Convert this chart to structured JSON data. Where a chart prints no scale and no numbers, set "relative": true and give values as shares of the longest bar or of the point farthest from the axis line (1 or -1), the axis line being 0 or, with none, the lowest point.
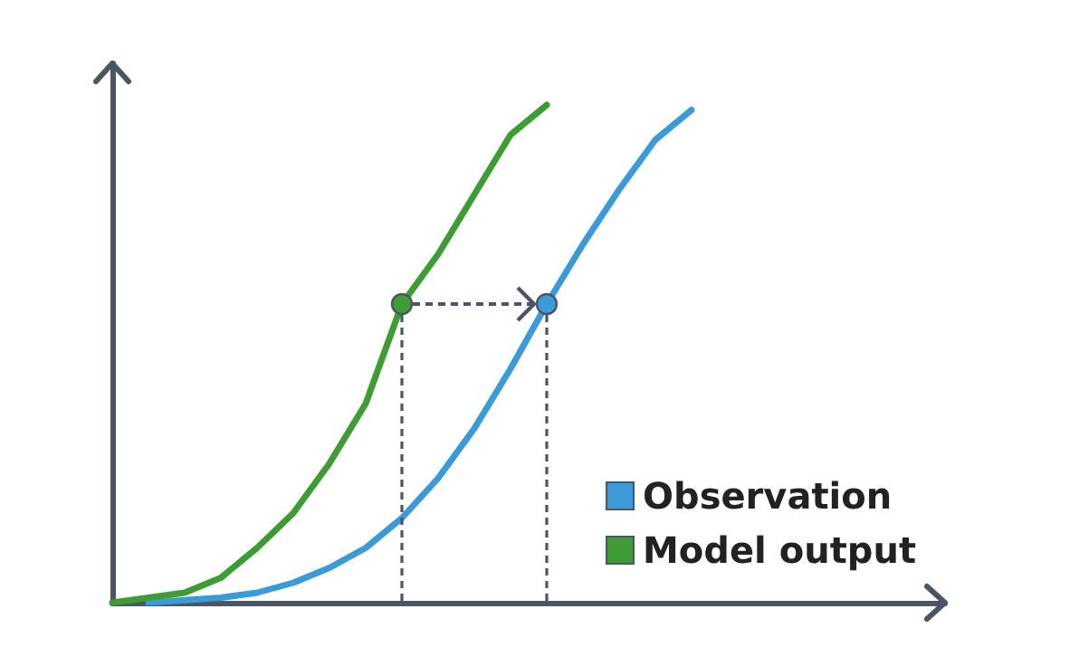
{
  "chart_data": {
    "type": "line",
    "relative": true,
    "legend": "bottom right",
    "marker": "none",
    "line_style": "solid",
    "categories": [
      null,
      null,
      null,
      null,
      null,
      null,
      null,
      null,
      null,
      null,
      null,
      null,
      null,
      null,
      null,
      null,
      null,
      null,
      null,
      null,
      null,
      null,
      null,
      null
    ],
    "series": [
      {
        "name": "Observation",
        "color": "#3b9bd8",
        "values": [
          null,
          0,
          0.005,
          0.01,
          0.02,
          0.04,
          0.07,
          0.11,
          0.17,
          0.25,
          0.35,
          0.47,
          0.6,
          0.72,
          0.83,
          0.93,
          0.99,
          null,
          null,
          null,
          null,
          null,
          null,
          null
        ]
      },
      {
        "name": "Model output",
        "color": "#3e9c35",
        "values": [
          0,
          0.01,
          0.02,
          0.05,
          0.11,
          0.18,
          0.28,
          0.4,
          0.6,
          0.7,
          0.82,
          0.94,
          1,
          null,
          null,
          null,
          null,
          null,
          null,
          null,
          null,
          null,
          null,
          null
        ]
      }
    ]
  }
}
